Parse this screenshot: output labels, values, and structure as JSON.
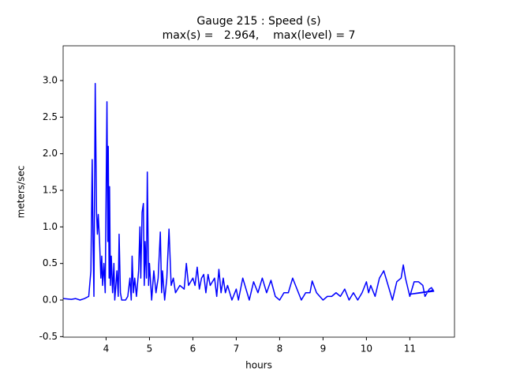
{
  "chart_data": {
    "type": "line",
    "title": [
      "Gauge 215 : Speed (s)",
      "max(s) =   2.964,    max(level) = 7"
    ],
    "xlabel": "hours",
    "ylabel": "meters/sec",
    "xlim": [
      3.01,
      12.03
    ],
    "ylim": [
      -0.507,
      3.475
    ],
    "xticks": [
      4,
      5,
      6,
      7,
      8,
      9,
      10,
      11
    ],
    "yticks": [
      {
        "value": -0.5,
        "label": "-0.5"
      },
      {
        "value": 0,
        "label": "0.0"
      },
      {
        "value": 0.5,
        "label": "0.5"
      },
      {
        "value": 1,
        "label": "1.0"
      },
      {
        "value": 1.5,
        "label": "1.5"
      },
      {
        "value": 2,
        "label": "2.0"
      },
      {
        "value": 2.5,
        "label": "2.5"
      },
      {
        "value": 3,
        "label": "3.0"
      }
    ],
    "color": "#0000ff",
    "x": [
      3.01,
      3.2,
      3.3,
      3.4,
      3.5,
      3.6,
      3.65,
      3.68,
      3.7,
      3.72,
      3.75,
      3.78,
      3.8,
      3.82,
      3.85,
      3.88,
      3.9,
      3.92,
      3.95,
      3.98,
      4.02,
      4.04,
      4.05,
      4.07,
      4.08,
      4.1,
      4.12,
      4.15,
      4.18,
      4.2,
      4.25,
      4.28,
      4.3,
      4.33,
      4.36,
      4.45,
      4.5,
      4.55,
      4.58,
      4.6,
      4.63,
      4.66,
      4.7,
      4.75,
      4.78,
      4.8,
      4.83,
      4.86,
      4.88,
      4.9,
      4.93,
      4.95,
      4.98,
      5.0,
      5.05,
      5.1,
      5.15,
      5.2,
      5.25,
      5.28,
      5.3,
      5.35,
      5.4,
      5.45,
      5.5,
      5.55,
      5.6,
      5.7,
      5.8,
      5.85,
      5.9,
      6.0,
      6.05,
      6.1,
      6.15,
      6.2,
      6.25,
      6.3,
      6.35,
      6.4,
      6.5,
      6.55,
      6.6,
      6.65,
      6.7,
      6.75,
      6.8,
      6.9,
      7.0,
      7.05,
      7.15,
      7.25,
      7.3,
      7.4,
      7.5,
      7.6,
      7.7,
      7.8,
      7.9,
      8.0,
      8.1,
      8.2,
      8.3,
      8.4,
      8.5,
      8.6,
      8.7,
      8.75,
      8.85,
      9.0,
      9.1,
      9.2,
      9.3,
      9.4,
      9.5,
      9.6,
      9.7,
      9.8,
      9.9,
      10.0,
      10.05,
      10.1,
      10.2,
      10.3,
      10.4,
      10.5,
      10.6,
      10.7,
      10.8,
      10.85,
      10.9,
      11.0,
      11.1,
      11.2,
      11.3,
      11.35,
      11.45,
      11.5,
      11.55,
      11.0,
      11.45,
      11.55
    ],
    "values": [
      0.02,
      0.01,
      0.02,
      0.0,
      0.02,
      0.05,
      0.4,
      1.92,
      0.8,
      0.05,
      2.96,
      1.2,
      0.9,
      1.17,
      0.8,
      0.3,
      0.6,
      0.2,
      0.5,
      0.1,
      2.71,
      0.8,
      2.1,
      0.3,
      1.55,
      0.2,
      0.6,
      0.1,
      0.5,
      0.0,
      0.4,
      0.05,
      0.9,
      0.1,
      0.0,
      0.0,
      0.05,
      0.3,
      0.0,
      0.6,
      0.1,
      0.3,
      0.05,
      0.4,
      1.0,
      0.3,
      1.2,
      1.32,
      0.2,
      0.8,
      0.3,
      1.75,
      0.2,
      0.5,
      0.0,
      0.4,
      0.1,
      0.3,
      0.93,
      0.1,
      0.4,
      0.0,
      0.3,
      0.97,
      0.2,
      0.3,
      0.1,
      0.2,
      0.15,
      0.5,
      0.2,
      0.3,
      0.2,
      0.45,
      0.15,
      0.3,
      0.35,
      0.1,
      0.35,
      0.2,
      0.3,
      0.05,
      0.42,
      0.1,
      0.3,
      0.1,
      0.2,
      0.0,
      0.15,
      0.0,
      0.3,
      0.1,
      0.0,
      0.25,
      0.1,
      0.3,
      0.1,
      0.27,
      0.05,
      0.0,
      0.1,
      0.1,
      0.3,
      0.15,
      0.0,
      0.1,
      0.1,
      0.26,
      0.1,
      0.0,
      0.05,
      0.05,
      0.1,
      0.05,
      0.15,
      0.0,
      0.1,
      0.0,
      0.1,
      0.25,
      0.1,
      0.2,
      0.05,
      0.3,
      0.4,
      0.2,
      0.0,
      0.25,
      0.3,
      0.48,
      0.3,
      0.05,
      0.25,
      0.25,
      0.2,
      0.05,
      0.15,
      0.17,
      0.12,
      0.08,
      0.12,
      0.14
    ]
  }
}
